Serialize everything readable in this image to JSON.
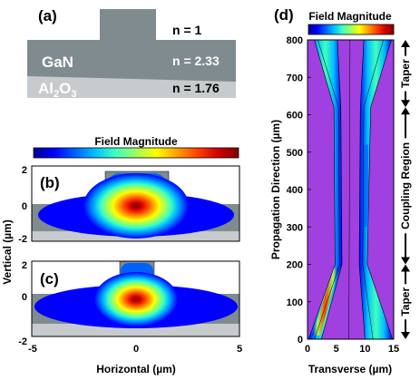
{
  "panel_a": {
    "label": "(a)",
    "layers": [
      {
        "name": "",
        "n_text": "n = 1",
        "color": "#ffffff"
      },
      {
        "name": "GaN",
        "n_text": "n = 2.33",
        "color": "#7f8b8e"
      },
      {
        "name_base": "Al",
        "sub1": "2",
        "name_mid": "O",
        "sub2": "3",
        "n_text": "n = 1.76",
        "color": "#c8cbcd"
      }
    ],
    "ridge_color": "#7f8b8e"
  },
  "colorbar_bc": {
    "title": "Field Magnitude"
  },
  "colorbar_d": {
    "title": "Field Magnitude"
  },
  "colormap": [
    "#00008f",
    "#0000ff",
    "#0060ff",
    "#00bfff",
    "#40ffbf",
    "#9fff60",
    "#ffff00",
    "#ffa000",
    "#ff4000",
    "#d00000",
    "#800000"
  ],
  "axes_bc": {
    "ylabel": "Vertical (µm)",
    "xlabel": "Horizontal (µm)",
    "xticks": [
      "-5",
      "0",
      "5"
    ],
    "yticks": [
      "2",
      "0",
      "-2"
    ]
  },
  "axes_d": {
    "ylabel": "Propagation Direction (µm)",
    "xlabel": "Transverse (µm)",
    "xticks": [
      "0",
      "5",
      "10",
      "15"
    ],
    "yticks": [
      "800",
      "700",
      "600",
      "500",
      "400",
      "300",
      "200",
      "100",
      "0"
    ]
  },
  "panel_labels": {
    "b": "(b)",
    "c": "(c)",
    "d": "(d)"
  },
  "regions": [
    {
      "label": "Taper",
      "from": 0,
      "to": 200
    },
    {
      "label": "Coupling Region",
      "from": 200,
      "to": 620
    },
    {
      "label": "Taper",
      "from": 620,
      "to": 800
    }
  ],
  "chart_data": [
    {
      "type": "heatmap",
      "panel": "b",
      "title": "Field Magnitude",
      "xlabel": "Horizontal (µm)",
      "ylabel": "Vertical (µm)",
      "xlim": [
        -5,
        5
      ],
      "ylim": [
        -2,
        1.6
      ],
      "field_peak": {
        "x": 0,
        "y": -0.1
      },
      "contour_levels": 10
    },
    {
      "type": "heatmap",
      "panel": "c",
      "title": "Field Magnitude",
      "xlabel": "Horizontal (µm)",
      "ylabel": "Vertical (µm)",
      "xlim": [
        -5,
        5
      ],
      "ylim": [
        -2,
        1.6
      ],
      "field_peak": {
        "x": 0,
        "y": -0.5
      },
      "contour_levels": 10
    },
    {
      "type": "heatmap",
      "panel": "d",
      "title": "Field Magnitude",
      "xlabel": "Transverse (µm)",
      "ylabel": "Propagation Direction (µm)",
      "xlim": [
        0,
        15
      ],
      "ylim": [
        0,
        800
      ],
      "waveguide_boundaries": [
        {
          "z": 0,
          "x": [
            0.8,
            1.2,
            11.6,
            14.8
          ]
        },
        {
          "z": 200,
          "x": [
            5.2,
            5.8,
            9.2,
            10.4
          ]
        },
        {
          "z": 620,
          "x": [
            5.0,
            5.6,
            9.4,
            11.0
          ]
        },
        {
          "z": 800,
          "x": [
            1.6,
            5.2,
            9.8,
            14.0
          ]
        }
      ]
    }
  ]
}
